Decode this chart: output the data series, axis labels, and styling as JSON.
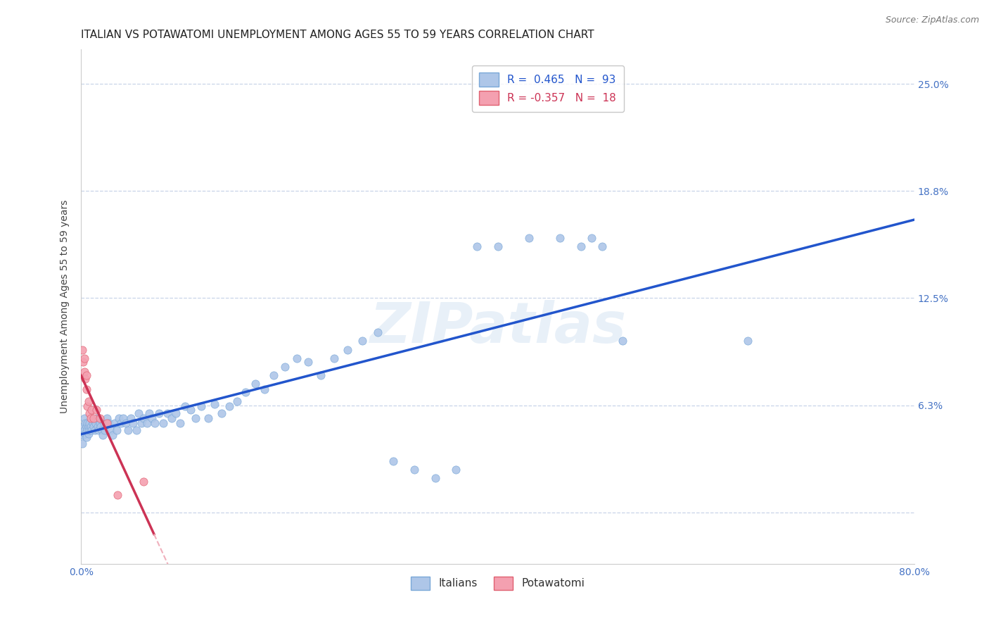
{
  "title": "ITALIAN VS POTAWATOMI UNEMPLOYMENT AMONG AGES 55 TO 59 YEARS CORRELATION CHART",
  "source": "Source: ZipAtlas.com",
  "ylabel": "Unemployment Among Ages 55 to 59 years",
  "xlim": [
    0.0,
    0.8
  ],
  "ylim": [
    -0.03,
    0.27
  ],
  "xticks": [
    0.0,
    0.1,
    0.2,
    0.3,
    0.4,
    0.5,
    0.6,
    0.7,
    0.8
  ],
  "xticklabels": [
    "0.0%",
    "",
    "",
    "",
    "",
    "",
    "",
    "",
    "80.0%"
  ],
  "ytick_values": [
    0.0,
    0.0625,
    0.125,
    0.1875,
    0.25
  ],
  "ytick_labels_right": [
    "",
    "6.3%",
    "12.5%",
    "18.8%",
    "25.0%"
  ],
  "background_color": "#ffffff",
  "plot_bg_color": "#ffffff",
  "grid_color": "#c8d4e8",
  "watermark_text": "ZIPatlas",
  "italians_color": "#aec6e8",
  "italians_edge_color": "#7aa8d8",
  "potawatomi_color": "#f4a0b0",
  "potawatomi_edge_color": "#e06070",
  "italian_line_color": "#2255cc",
  "potawatomi_line_color": "#cc3355",
  "potawatomi_dash_color": "#f0b0bc",
  "legend_italian_r": "0.465",
  "legend_italian_n": "93",
  "legend_potawatomi_r": "-0.357",
  "legend_potawatomi_n": "18",
  "title_fontsize": 11,
  "axis_label_fontsize": 10,
  "tick_fontsize": 10,
  "legend_fontsize": 11,
  "italians_x": [
    0.001,
    0.002,
    0.002,
    0.003,
    0.003,
    0.004,
    0.004,
    0.005,
    0.005,
    0.006,
    0.006,
    0.007,
    0.007,
    0.008,
    0.008,
    0.009,
    0.01,
    0.01,
    0.011,
    0.012,
    0.013,
    0.014,
    0.015,
    0.016,
    0.017,
    0.018,
    0.019,
    0.02,
    0.021,
    0.022,
    0.023,
    0.024,
    0.025,
    0.027,
    0.028,
    0.03,
    0.032,
    0.034,
    0.036,
    0.038,
    0.04,
    0.043,
    0.045,
    0.048,
    0.05,
    0.053,
    0.055,
    0.058,
    0.06,
    0.063,
    0.065,
    0.068,
    0.071,
    0.075,
    0.079,
    0.083,
    0.087,
    0.091,
    0.095,
    0.1,
    0.105,
    0.11,
    0.115,
    0.122,
    0.128,
    0.135,
    0.142,
    0.15,
    0.158,
    0.167,
    0.176,
    0.185,
    0.196,
    0.207,
    0.218,
    0.23,
    0.243,
    0.256,
    0.27,
    0.285,
    0.3,
    0.32,
    0.34,
    0.36,
    0.38,
    0.4,
    0.43,
    0.46,
    0.49,
    0.64,
    0.48,
    0.5,
    0.52
  ],
  "italians_y": [
    0.04,
    0.05,
    0.045,
    0.055,
    0.048,
    0.052,
    0.046,
    0.05,
    0.044,
    0.048,
    0.052,
    0.046,
    0.05,
    0.048,
    0.052,
    0.05,
    0.055,
    0.048,
    0.052,
    0.05,
    0.048,
    0.052,
    0.055,
    0.05,
    0.048,
    0.052,
    0.05,
    0.048,
    0.045,
    0.052,
    0.048,
    0.052,
    0.055,
    0.052,
    0.048,
    0.045,
    0.052,
    0.048,
    0.055,
    0.052,
    0.055,
    0.052,
    0.048,
    0.055,
    0.052,
    0.048,
    0.058,
    0.052,
    0.055,
    0.052,
    0.058,
    0.055,
    0.052,
    0.058,
    0.052,
    0.058,
    0.055,
    0.058,
    0.052,
    0.062,
    0.06,
    0.055,
    0.062,
    0.055,
    0.063,
    0.058,
    0.062,
    0.065,
    0.07,
    0.075,
    0.072,
    0.08,
    0.085,
    0.09,
    0.088,
    0.08,
    0.09,
    0.095,
    0.1,
    0.105,
    0.03,
    0.025,
    0.02,
    0.025,
    0.155,
    0.155,
    0.16,
    0.16,
    0.16,
    0.1,
    0.155,
    0.155,
    0.1
  ],
  "potawatomi_x": [
    0.001,
    0.002,
    0.003,
    0.003,
    0.004,
    0.005,
    0.005,
    0.006,
    0.007,
    0.008,
    0.009,
    0.01,
    0.012,
    0.015,
    0.018,
    0.025,
    0.035,
    0.06
  ],
  "potawatomi_y": [
    0.095,
    0.088,
    0.09,
    0.082,
    0.078,
    0.08,
    0.072,
    0.062,
    0.065,
    0.058,
    0.055,
    0.06,
    0.055,
    0.06,
    0.055,
    0.052,
    0.01,
    0.018
  ]
}
